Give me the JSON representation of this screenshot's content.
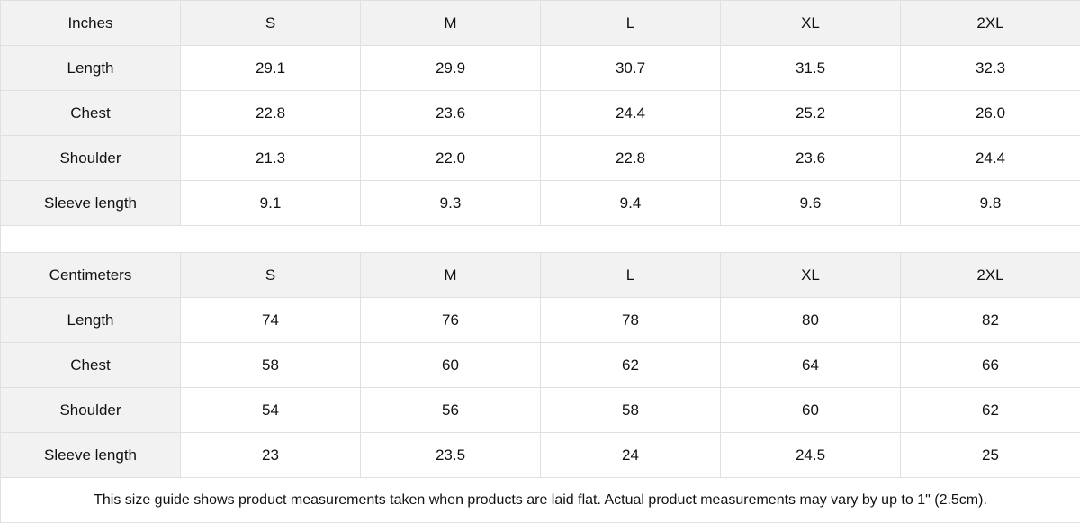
{
  "tables": [
    {
      "unit": "Inches",
      "sizes": [
        "S",
        "M",
        "L",
        "XL",
        "2XL"
      ],
      "rows": [
        {
          "label": "Length",
          "values": [
            "29.1",
            "29.9",
            "30.7",
            "31.5",
            "32.3"
          ]
        },
        {
          "label": "Chest",
          "values": [
            "22.8",
            "23.6",
            "24.4",
            "25.2",
            "26.0"
          ]
        },
        {
          "label": "Shoulder",
          "values": [
            "21.3",
            "22.0",
            "22.8",
            "23.6",
            "24.4"
          ]
        },
        {
          "label": "Sleeve length",
          "values": [
            "9.1",
            "9.3",
            "9.4",
            "9.6",
            "9.8"
          ]
        }
      ]
    },
    {
      "unit": "Centimeters",
      "sizes": [
        "S",
        "M",
        "L",
        "XL",
        "2XL"
      ],
      "rows": [
        {
          "label": "Length",
          "values": [
            "74",
            "76",
            "78",
            "80",
            "82"
          ]
        },
        {
          "label": "Chest",
          "values": [
            "58",
            "60",
            "62",
            "64",
            "66"
          ]
        },
        {
          "label": "Shoulder",
          "values": [
            "54",
            "56",
            "58",
            "60",
            "62"
          ]
        },
        {
          "label": "Sleeve length",
          "values": [
            "23",
            "23.5",
            "24",
            "24.5",
            "25"
          ]
        }
      ]
    }
  ],
  "note": "This size guide shows product measurements taken when products are laid flat.  Actual product measurements may vary by up to 1\" (2.5cm).",
  "colors": {
    "header_bg": "#f2f2f2",
    "border": "#e0e0e0"
  }
}
